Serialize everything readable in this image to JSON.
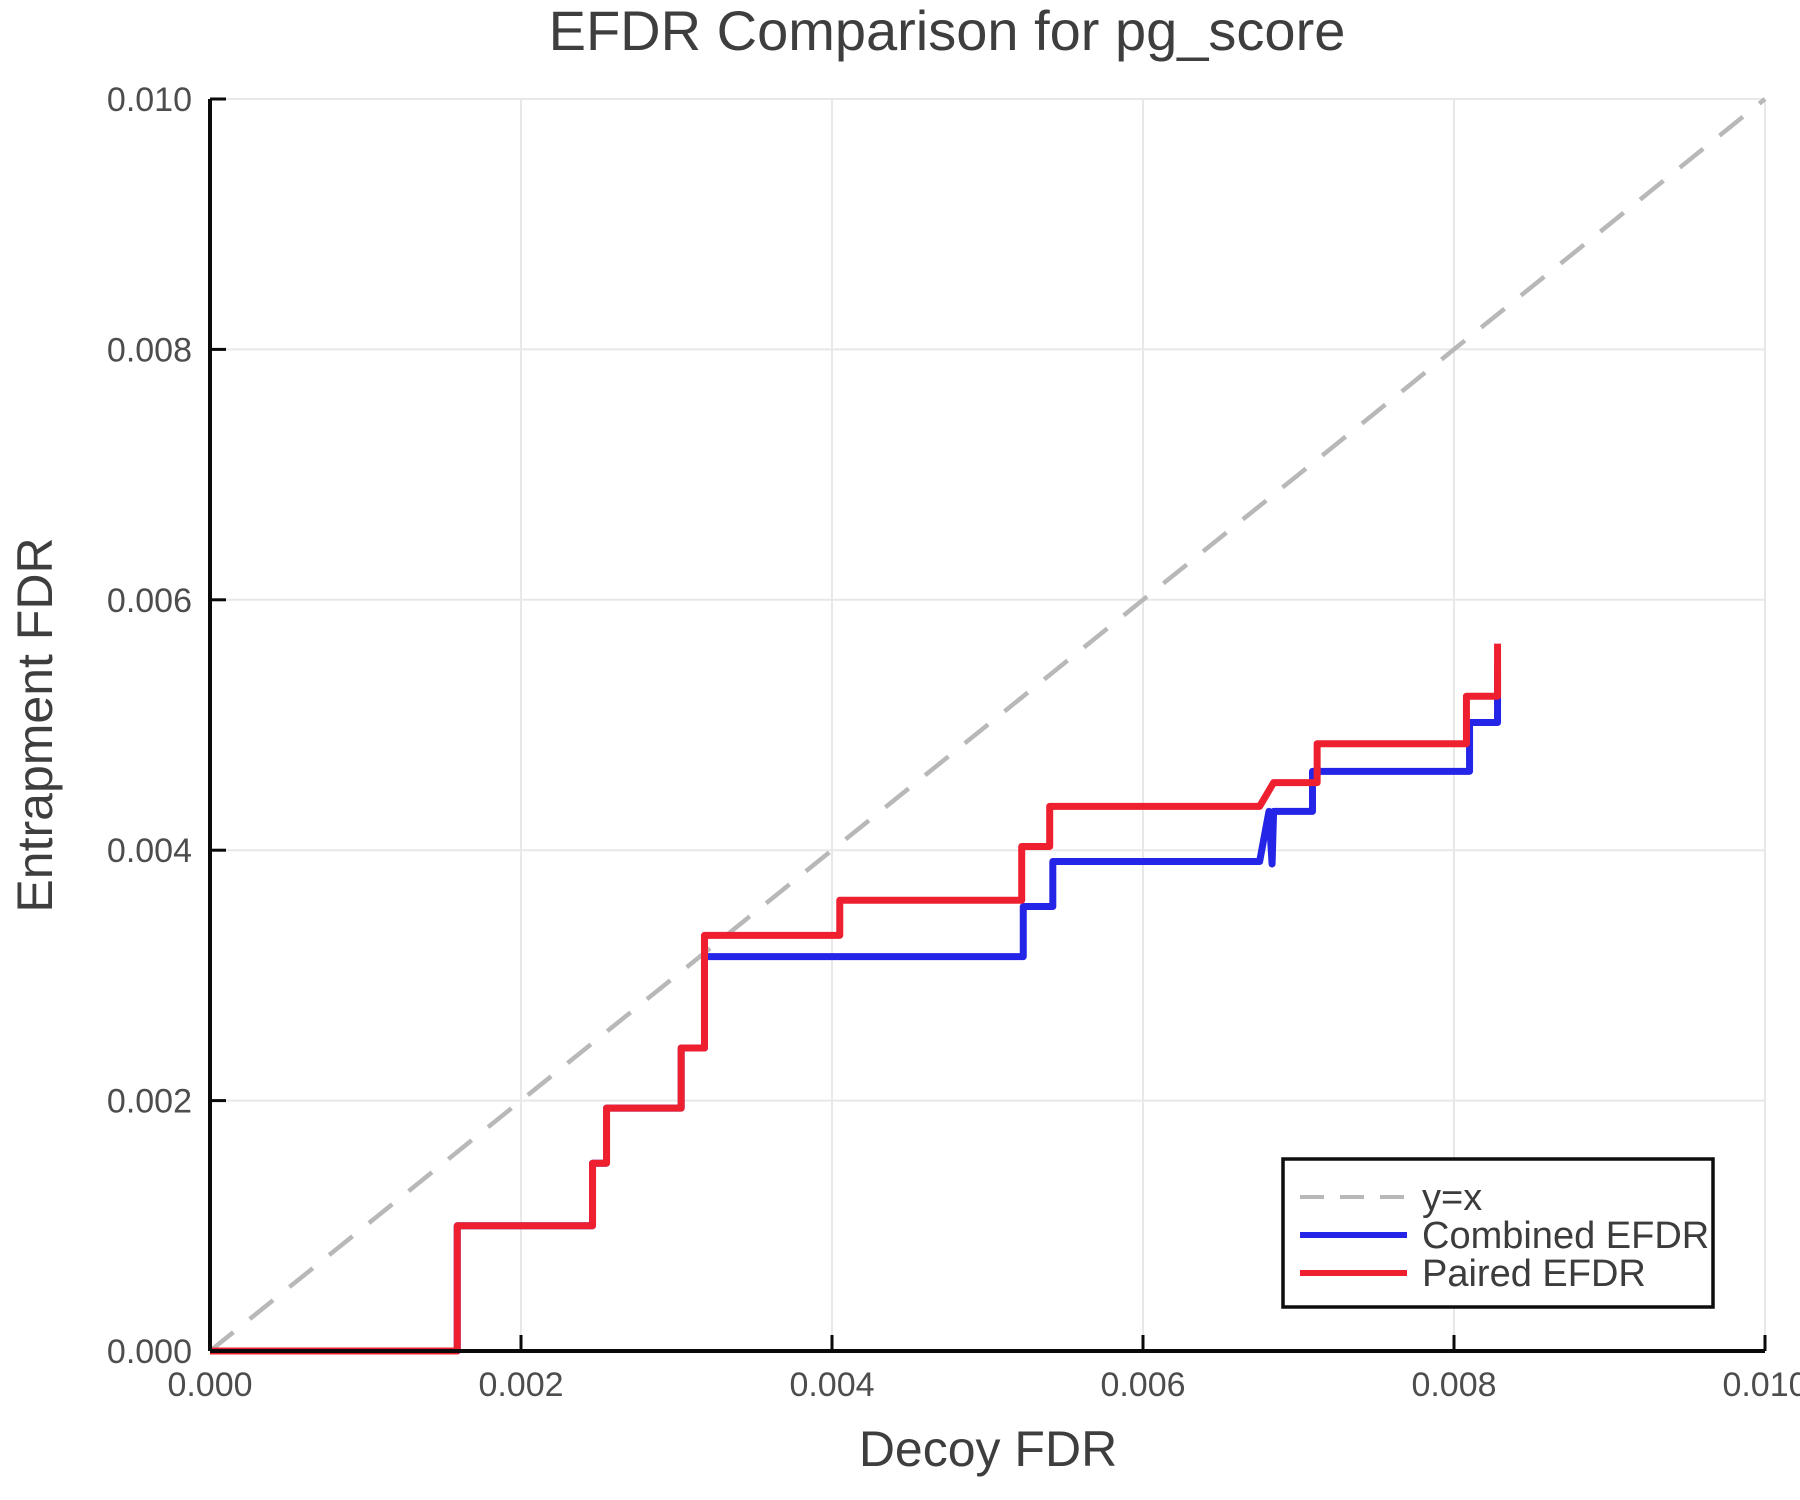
{
  "title": "EFDR Comparison for pg_score",
  "axes": {
    "xlabel": "Decoy FDR",
    "ylabel": "Entrapment FDR",
    "x_tick_labels": [
      "0.000",
      "0.002",
      "0.004",
      "0.006",
      "0.008",
      "0.010"
    ],
    "y_tick_labels": [
      "0.000",
      "0.002",
      "0.004",
      "0.006",
      "0.008",
      "0.010"
    ]
  },
  "colors": {
    "identity": "#b8b8b8",
    "combined": "#2525e8",
    "paired": "#ee2030",
    "grid": "#e8e8e8",
    "spine": "#0a0a0a",
    "legend_border": "#0d0d0d"
  },
  "legend": {
    "items": [
      {
        "label": "y=x"
      },
      {
        "label": "Combined EFDR"
      },
      {
        "label": "Paired EFDR"
      }
    ]
  },
  "chart_data": {
    "type": "line",
    "title": "EFDR Comparison for pg_score",
    "xlabel": "Decoy FDR",
    "ylabel": "Entrapment FDR",
    "xlim": [
      0.0,
      0.01
    ],
    "ylim": [
      0.0,
      0.01
    ],
    "grid": true,
    "legend_position": "lower right",
    "series": [
      {
        "name": "y=x",
        "style": "dashed",
        "color": "#b8b8b8",
        "points": [
          [
            0.0,
            0.0
          ],
          [
            0.01,
            0.01
          ]
        ]
      },
      {
        "name": "Combined EFDR",
        "style": "solid",
        "color": "#2525e8",
        "points": [
          [
            0.0,
            0.0
          ],
          [
            0.00159,
            0.0
          ],
          [
            0.00159,
            0.001
          ],
          [
            0.00246,
            0.001
          ],
          [
            0.00246,
            0.0015
          ],
          [
            0.00255,
            0.0015
          ],
          [
            0.00255,
            0.00194
          ],
          [
            0.00303,
            0.00194
          ],
          [
            0.00303,
            0.00242
          ],
          [
            0.00318,
            0.00242
          ],
          [
            0.00318,
            0.00315
          ],
          [
            0.00523,
            0.00315
          ],
          [
            0.00523,
            0.00355
          ],
          [
            0.00542,
            0.00355
          ],
          [
            0.00542,
            0.00391
          ],
          [
            0.00675,
            0.00391
          ],
          [
            0.00681,
            0.00431
          ],
          [
            0.00683,
            0.00389
          ],
          [
            0.00684,
            0.00431
          ],
          [
            0.00709,
            0.00431
          ],
          [
            0.00709,
            0.00463
          ],
          [
            0.0081,
            0.00463
          ],
          [
            0.0081,
            0.00502
          ],
          [
            0.00828,
            0.00502
          ],
          [
            0.00828,
            0.00544
          ]
        ]
      },
      {
        "name": "Paired EFDR",
        "style": "solid",
        "color": "#ee2030",
        "points": [
          [
            0.0,
            0.0
          ],
          [
            0.00159,
            0.0
          ],
          [
            0.00159,
            0.001
          ],
          [
            0.00246,
            0.001
          ],
          [
            0.00246,
            0.0015
          ],
          [
            0.00255,
            0.0015
          ],
          [
            0.00255,
            0.00194
          ],
          [
            0.00303,
            0.00194
          ],
          [
            0.00303,
            0.00242
          ],
          [
            0.00318,
            0.00242
          ],
          [
            0.00318,
            0.00332
          ],
          [
            0.00405,
            0.00332
          ],
          [
            0.00405,
            0.0036
          ],
          [
            0.00522,
            0.0036
          ],
          [
            0.00522,
            0.00403
          ],
          [
            0.0054,
            0.00403
          ],
          [
            0.0054,
            0.00435
          ],
          [
            0.00675,
            0.00435
          ],
          [
            0.00684,
            0.00454
          ],
          [
            0.00712,
            0.00454
          ],
          [
            0.00712,
            0.00485
          ],
          [
            0.00808,
            0.00485
          ],
          [
            0.00808,
            0.00523
          ],
          [
            0.00828,
            0.00523
          ],
          [
            0.00828,
            0.00565
          ]
        ]
      }
    ]
  }
}
